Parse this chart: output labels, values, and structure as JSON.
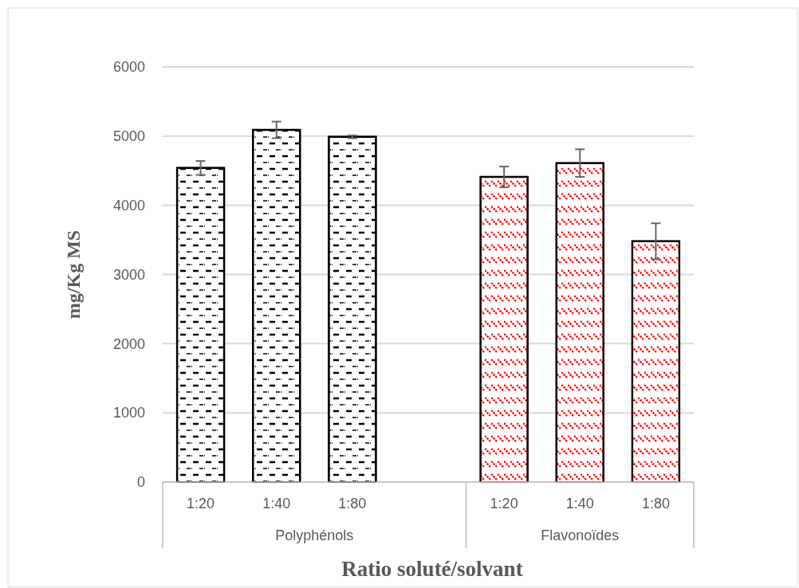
{
  "chart_data": {
    "type": "bar",
    "xlabel": "Ratio soluté/solvant",
    "ylabel": "mg/Kg MS",
    "categories": [
      "1:20",
      "1:40",
      "1:80",
      null,
      "1:20",
      "1:40",
      "1:80"
    ],
    "series": [
      {
        "color": "#000000",
        "values": [
          4540,
          5090,
          4990,
          null,
          null,
          null,
          null
        ],
        "errors": [
          100,
          120,
          20,
          null,
          null,
          null,
          null
        ]
      },
      {
        "color": "#ff0000",
        "values": [
          null,
          null,
          null,
          null,
          4410,
          4610,
          3480
        ],
        "errors": [
          null,
          null,
          null,
          null,
          150,
          200,
          260
        ]
      }
    ],
    "annotations": [
      "Polyphénols",
      "Flavonoïdes"
    ],
    "ylim": [
      0,
      6000
    ],
    "yticks": [
      0,
      1000,
      2000,
      3000,
      4000,
      5000,
      6000
    ],
    "grid": "y"
  }
}
